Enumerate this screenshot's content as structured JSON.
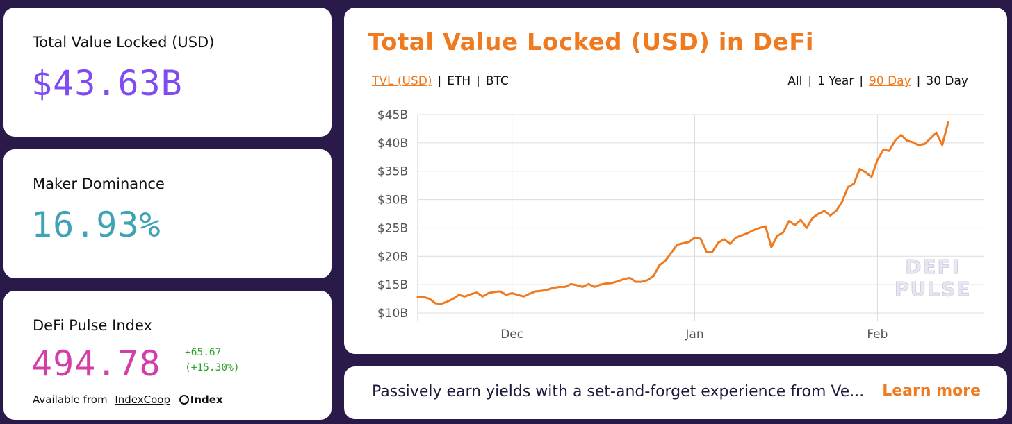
{
  "stats": {
    "tvl": {
      "label": "Total Value Locked (USD)",
      "value": "$43.63B",
      "color": "#7e4cf0"
    },
    "maker": {
      "label": "Maker Dominance",
      "value": "16.93%",
      "color": "#3ea3b5"
    },
    "dpi": {
      "label": "DeFi Pulse Index",
      "value": "494.78",
      "color": "#d43ea8",
      "change_abs": "+65.67",
      "change_pct": "(+15.30%)",
      "change_color": "#2fa02a",
      "available_text": "Available from",
      "available_link": "IndexCoop",
      "brand_label": "Index",
      "brand_icon": "index-logo-icon"
    }
  },
  "chart_panel": {
    "title": "Total Value Locked (USD) in DeFi",
    "units": [
      {
        "label": "TVL (USD)",
        "active": true
      },
      {
        "label": "ETH",
        "active": false
      },
      {
        "label": "BTC",
        "active": false
      }
    ],
    "ranges": [
      {
        "label": "All",
        "active": false
      },
      {
        "label": "1 Year",
        "active": false
      },
      {
        "label": "90 Day",
        "active": true
      },
      {
        "label": "30 Day",
        "active": false
      }
    ],
    "watermark": [
      "DEFI",
      "PULSE"
    ],
    "accent": "#ef7a1f"
  },
  "chart_data": {
    "type": "line",
    "title": "Total Value Locked (USD) in DeFi",
    "xlabel": "",
    "ylabel": "",
    "y_ticks": [
      "$10B",
      "$15B",
      "$20B",
      "$25B",
      "$30B",
      "$35B",
      "$40B",
      "$45B"
    ],
    "ylim": [
      10,
      45
    ],
    "x_ticks": [
      {
        "label": "Dec",
        "date": "2020-12-01"
      },
      {
        "label": "Jan",
        "date": "2021-01-01"
      },
      {
        "label": "Feb",
        "date": "2021-02-01"
      }
    ],
    "xlim": [
      "2020-11-15",
      "2021-02-19"
    ],
    "grid": true,
    "series": [
      {
        "color": "#ef7a1f",
        "points": [
          [
            "2020-11-15",
            12.8
          ],
          [
            "2020-11-16",
            12.8
          ],
          [
            "2020-11-17",
            12.5
          ],
          [
            "2020-11-18",
            11.7
          ],
          [
            "2020-11-19",
            11.6
          ],
          [
            "2020-11-20",
            12.0
          ],
          [
            "2020-11-21",
            12.5
          ],
          [
            "2020-11-22",
            13.2
          ],
          [
            "2020-11-23",
            12.9
          ],
          [
            "2020-11-24",
            13.3
          ],
          [
            "2020-11-25",
            13.6
          ],
          [
            "2020-11-26",
            12.9
          ],
          [
            "2020-11-27",
            13.5
          ],
          [
            "2020-11-28",
            13.7
          ],
          [
            "2020-11-29",
            13.8
          ],
          [
            "2020-11-30",
            13.2
          ],
          [
            "2020-12-01",
            13.5
          ],
          [
            "2020-12-02",
            13.2
          ],
          [
            "2020-12-03",
            12.9
          ],
          [
            "2020-12-04",
            13.4
          ],
          [
            "2020-12-05",
            13.8
          ],
          [
            "2020-12-06",
            13.9
          ],
          [
            "2020-12-07",
            14.1
          ],
          [
            "2020-12-08",
            14.4
          ],
          [
            "2020-12-09",
            14.6
          ],
          [
            "2020-12-10",
            14.6
          ],
          [
            "2020-12-11",
            15.1
          ],
          [
            "2020-12-12",
            14.9
          ],
          [
            "2020-12-13",
            14.6
          ],
          [
            "2020-12-14",
            15.1
          ],
          [
            "2020-12-15",
            14.6
          ],
          [
            "2020-12-16",
            15.0
          ],
          [
            "2020-12-17",
            15.2
          ],
          [
            "2020-12-18",
            15.3
          ],
          [
            "2020-12-19",
            15.6
          ],
          [
            "2020-12-20",
            16.0
          ],
          [
            "2020-12-21",
            16.2
          ],
          [
            "2020-12-22",
            15.5
          ],
          [
            "2020-12-23",
            15.5
          ],
          [
            "2020-12-24",
            15.8
          ],
          [
            "2020-12-25",
            16.5
          ],
          [
            "2020-12-26",
            18.4
          ],
          [
            "2020-12-27",
            19.2
          ],
          [
            "2020-12-28",
            20.6
          ],
          [
            "2020-12-29",
            22.0
          ],
          [
            "2020-12-30",
            22.3
          ],
          [
            "2020-12-31",
            22.5
          ],
          [
            "2021-01-01",
            23.3
          ],
          [
            "2021-01-02",
            23.1
          ],
          [
            "2021-01-03",
            20.8
          ],
          [
            "2021-01-04",
            20.8
          ],
          [
            "2021-01-05",
            22.4
          ],
          [
            "2021-01-06",
            23.0
          ],
          [
            "2021-01-07",
            22.2
          ],
          [
            "2021-01-08",
            23.3
          ],
          [
            "2021-01-09",
            23.7
          ],
          [
            "2021-01-10",
            24.1
          ],
          [
            "2021-01-11",
            24.6
          ],
          [
            "2021-01-12",
            25.0
          ],
          [
            "2021-01-13",
            25.3
          ],
          [
            "2021-01-14",
            21.6
          ],
          [
            "2021-01-15",
            23.6
          ],
          [
            "2021-01-16",
            24.2
          ],
          [
            "2021-01-17",
            26.2
          ],
          [
            "2021-01-18",
            25.5
          ],
          [
            "2021-01-19",
            26.4
          ],
          [
            "2021-01-20",
            25.0
          ],
          [
            "2021-01-21",
            26.8
          ],
          [
            "2021-01-22",
            27.5
          ],
          [
            "2021-01-23",
            28.0
          ],
          [
            "2021-01-24",
            27.2
          ],
          [
            "2021-01-25",
            28.0
          ],
          [
            "2021-01-26",
            29.6
          ],
          [
            "2021-01-27",
            32.2
          ],
          [
            "2021-01-28",
            32.8
          ],
          [
            "2021-01-29",
            35.4
          ],
          [
            "2021-01-30",
            34.8
          ],
          [
            "2021-01-31",
            34.0
          ],
          [
            "2021-02-01",
            37.0
          ],
          [
            "2021-02-02",
            38.8
          ],
          [
            "2021-02-03",
            38.6
          ],
          [
            "2021-02-04",
            40.4
          ],
          [
            "2021-02-05",
            41.4
          ],
          [
            "2021-02-06",
            40.4
          ],
          [
            "2021-02-07",
            40.1
          ],
          [
            "2021-02-08",
            39.6
          ],
          [
            "2021-02-09",
            39.8
          ],
          [
            "2021-02-10",
            40.8
          ],
          [
            "2021-02-11",
            41.8
          ],
          [
            "2021-02-12",
            39.6
          ],
          [
            "2021-02-13",
            43.6
          ]
        ]
      }
    ]
  },
  "promo": {
    "text": "Passively earn yields with a set-and-forget experience from Ve...",
    "link": "Learn more"
  }
}
